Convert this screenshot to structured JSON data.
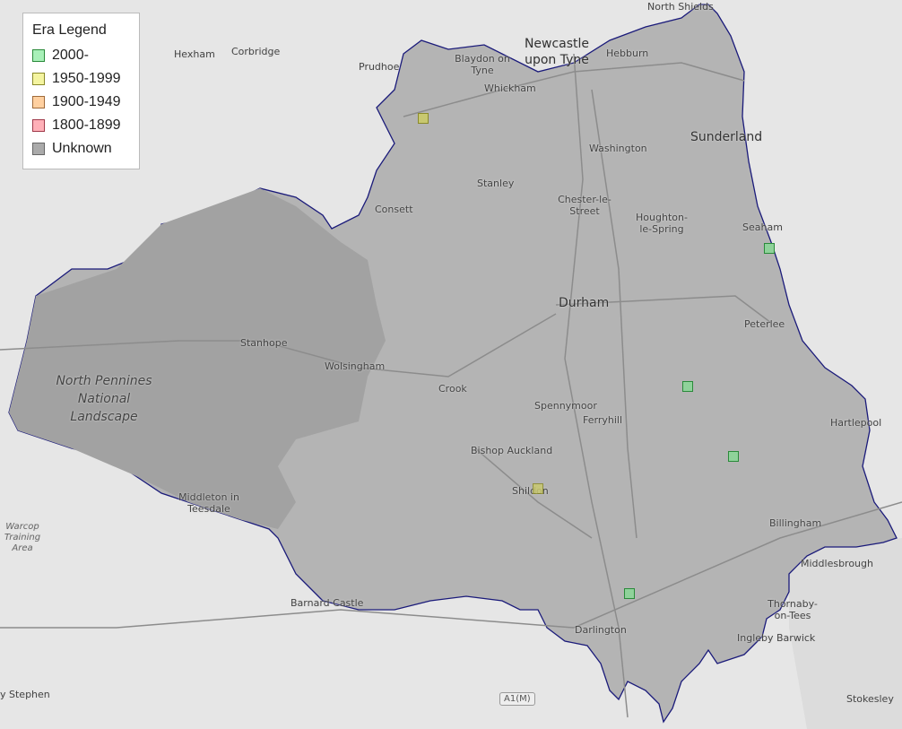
{
  "legend": {
    "title": "Era Legend",
    "items": [
      {
        "label": "2000-",
        "fill": "#a8f0b8",
        "stroke": "#2a8a3a"
      },
      {
        "label": "1950-1999",
        "fill": "#f4f4a0",
        "stroke": "#8a8a2a"
      },
      {
        "label": "1900-1949",
        "fill": "#ffd0a0",
        "stroke": "#a06a3a"
      },
      {
        "label": "1800-1899",
        "fill": "#ffb0b8",
        "stroke": "#a03a4a"
      },
      {
        "label": "Unknown",
        "fill": "#aaaaaa",
        "stroke": "#666666"
      }
    ]
  },
  "colors": {
    "boundary": "#1a1a7a",
    "region_fill": "#b4b4b4",
    "park_fill": "#a2a2a2",
    "background": "#e6e6e6"
  },
  "places": [
    {
      "name": "North Shields"
    },
    {
      "name": "Newcastle upon Tyne"
    },
    {
      "name": "Hebburn"
    },
    {
      "name": "Blaydon on Tyne"
    },
    {
      "name": "Hexham"
    },
    {
      "name": "Corbridge"
    },
    {
      "name": "Prudhoe"
    },
    {
      "name": "Whickham"
    },
    {
      "name": "Sunderland"
    },
    {
      "name": "Washington"
    },
    {
      "name": "Stanley"
    },
    {
      "name": "Chester-le-Street"
    },
    {
      "name": "Houghton-le-Spring"
    },
    {
      "name": "Consett"
    },
    {
      "name": "Seaham"
    },
    {
      "name": "Durham"
    },
    {
      "name": "Peterlee"
    },
    {
      "name": "Stanhope"
    },
    {
      "name": "Wolsingham"
    },
    {
      "name": "Crook"
    },
    {
      "name": "Spennymoor"
    },
    {
      "name": "Ferryhill"
    },
    {
      "name": "Hartlepool"
    },
    {
      "name": "Bishop Auckland"
    },
    {
      "name": "Shildon"
    },
    {
      "name": "Middleton in Teesdale"
    },
    {
      "name": "Billingham"
    },
    {
      "name": "Middlesbrough"
    },
    {
      "name": "Barnard Castle"
    },
    {
      "name": "Thornaby-on-Tees"
    },
    {
      "name": "Darlington"
    },
    {
      "name": "Ingleby Barwick"
    },
    {
      "name": "Stokesley"
    },
    {
      "name": "y Stephen"
    }
  ],
  "park_label": "North Pennines National Landscape",
  "area_label": "Warcop Training Area",
  "road_shield": "A1(M)",
  "markers": [
    {
      "era": "1950-1999",
      "near": "Consett"
    },
    {
      "era": "2000-",
      "near": "Seaham"
    },
    {
      "era": "2000-",
      "near": "Peterlee"
    },
    {
      "era": "2000-",
      "near": "Hartlepool"
    },
    {
      "era": "1950-1999",
      "near": "Shildon"
    },
    {
      "era": "2000-",
      "near": "Darlington"
    }
  ]
}
